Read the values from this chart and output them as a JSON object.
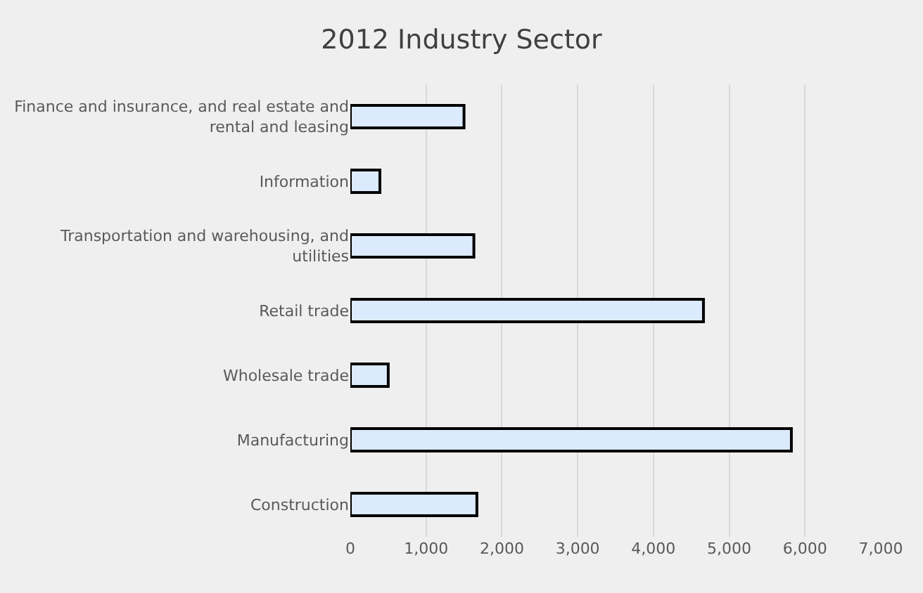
{
  "chart_data": {
    "type": "bar",
    "orientation": "horizontal",
    "title": "2012 Industry Sector",
    "categories": [
      "Finance and insurance, and real estate and rental and leasing",
      "Information",
      "Transportation and warehousing, and utilities",
      "Retail trade",
      "Wholesale trade",
      "Manufacturing",
      "Construction"
    ],
    "values": [
      1500,
      390,
      1630,
      4660,
      500,
      5820,
      1670
    ],
    "color": "#dbeafc",
    "xlim": [
      0,
      7000
    ],
    "xticks": [
      {
        "value": 0,
        "label": "0"
      },
      {
        "value": 1000,
        "label": "1,000"
      },
      {
        "value": 2000,
        "label": "2,000"
      },
      {
        "value": 3000,
        "label": "3,000"
      },
      {
        "value": 4000,
        "label": "4,000"
      },
      {
        "value": 5000,
        "label": "5,000"
      },
      {
        "value": 6000,
        "label": "6,000"
      },
      {
        "value": 7000,
        "label": "7,000"
      }
    ],
    "grid": true
  }
}
